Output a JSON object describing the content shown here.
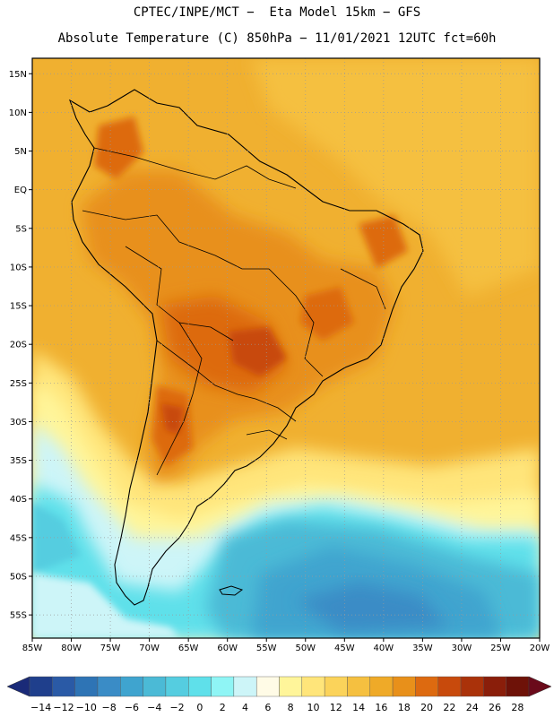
{
  "header": {
    "line1": "CPTEC/INPE/MCT −  Eta Model 15km − GFS",
    "line2": "Absolute Temperature (C) 850hPa − 11/01/2021 12UTC fct=60h"
  },
  "map": {
    "lon_range": [
      -85,
      -20
    ],
    "lat_range": [
      -58,
      17
    ],
    "lat_labels": [
      "15N",
      "10N",
      "5N",
      "EQ",
      "5S",
      "10S",
      "15S",
      "20S",
      "25S",
      "30S",
      "35S",
      "40S",
      "45S",
      "50S",
      "55S"
    ],
    "lat_values": [
      15,
      10,
      5,
      0,
      -5,
      -10,
      -15,
      -20,
      -25,
      -30,
      -35,
      -40,
      -45,
      -50,
      -55
    ],
    "lon_labels": [
      "85W",
      "80W",
      "75W",
      "70W",
      "65W",
      "60W",
      "55W",
      "50W",
      "45W",
      "40W",
      "35W",
      "30W",
      "25W",
      "20W"
    ],
    "lon_values": [
      -85,
      -80,
      -75,
      -70,
      -65,
      -60,
      -55,
      -50,
      -45,
      -40,
      -35,
      -30,
      -25,
      -20
    ]
  },
  "colorbar": {
    "labels": [
      "−14",
      "−12",
      "−10",
      "−8",
      "−6",
      "−4",
      "−2",
      "0",
      "2",
      "4",
      "6",
      "8",
      "10",
      "12",
      "14",
      "16",
      "18",
      "20",
      "22",
      "24",
      "26",
      "28"
    ],
    "colors": [
      "#1f3f8c",
      "#2a5aa6",
      "#2e74b5",
      "#3a8cc6",
      "#3fa4cf",
      "#4bbad6",
      "#55cde0",
      "#5fe0ea",
      "#8ff5f5",
      "#cdf5f8",
      "#fffbe6",
      "#fff59a",
      "#ffe57a",
      "#fbd35a",
      "#f5c040",
      "#efaa28",
      "#e8901a",
      "#dd6a10",
      "#c84a0c",
      "#aa320a",
      "#8a1e0a",
      "#6e1208"
    ],
    "low_arrow_color": "#1a2a78",
    "high_arrow_color": "#6a0a1a"
  }
}
